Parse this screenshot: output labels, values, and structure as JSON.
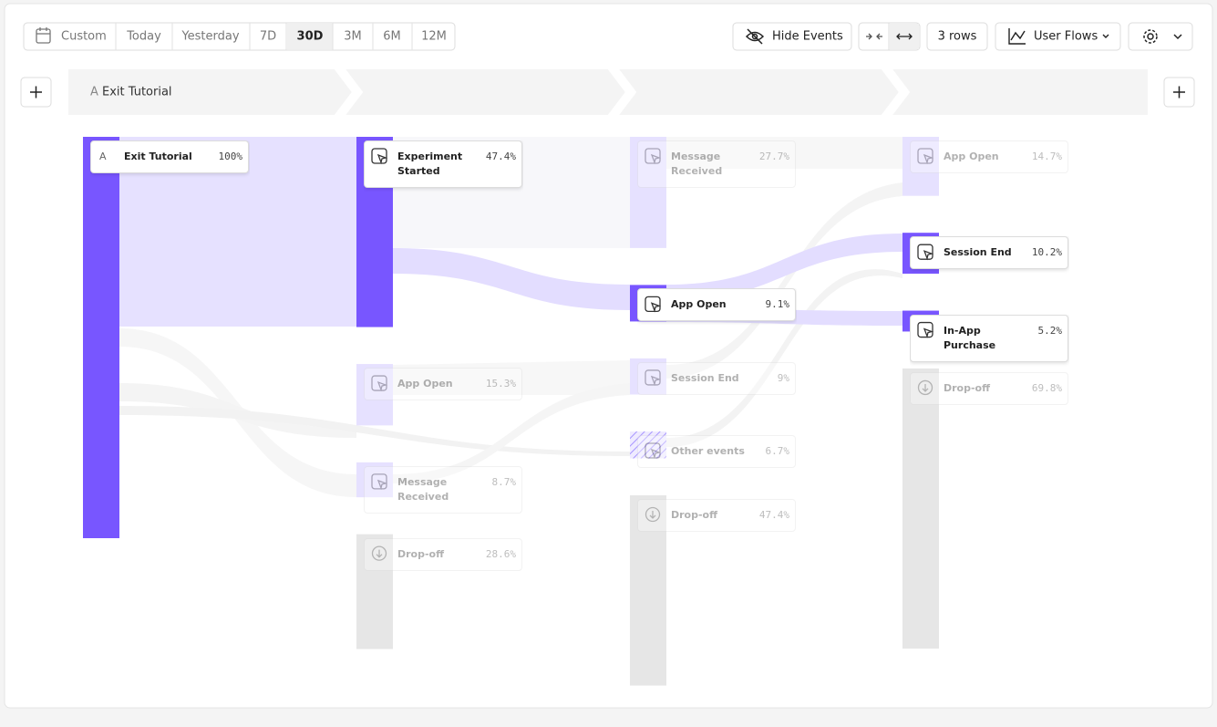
{
  "toolbar": {
    "date_ranges": [
      "Custom",
      "Today",
      "Yesterday",
      "7D",
      "30D",
      "3M",
      "6M",
      "12M"
    ],
    "active_range": 4,
    "hide_events": "Hide Events",
    "rows": "3 rows",
    "view": "User Flows"
  },
  "steps": [
    {
      "letter": "A",
      "label": "Exit Tutorial"
    }
  ],
  "columns": [
    [
      {
        "letter": "A",
        "label": "Exit Tutorial",
        "value": 100,
        "value_label": "100%",
        "highlighted": true,
        "kind": "event"
      }
    ],
    [
      {
        "label": "Experiment Started",
        "value": 47.4,
        "value_label": "47.4%",
        "highlighted": true,
        "kind": "event"
      },
      {
        "label": "App Open",
        "value": 15.3,
        "value_label": "15.3%",
        "highlighted": false,
        "kind": "event"
      },
      {
        "label": "Message Received",
        "value": 8.7,
        "value_label": "8.7%",
        "highlighted": false,
        "kind": "event"
      },
      {
        "label": "Drop-off",
        "value": 28.6,
        "value_label": "28.6%",
        "highlighted": false,
        "kind": "dropoff"
      }
    ],
    [
      {
        "label": "Message Received",
        "value": 27.7,
        "value_label": "27.7%",
        "highlighted": false,
        "kind": "event"
      },
      {
        "label": "App Open",
        "value": 9.1,
        "value_label": "9.1%",
        "highlighted": true,
        "kind": "event"
      },
      {
        "label": "Session End",
        "value": 9,
        "value_label": "9%",
        "highlighted": false,
        "kind": "event"
      },
      {
        "label": "Other events",
        "value": 6.7,
        "value_label": "6.7%",
        "highlighted": false,
        "kind": "other"
      },
      {
        "label": "Drop-off",
        "value": 47.4,
        "value_label": "47.4%",
        "highlighted": false,
        "kind": "dropoff"
      }
    ],
    [
      {
        "label": "App Open",
        "value": 14.7,
        "value_label": "14.7%",
        "highlighted": false,
        "kind": "event"
      },
      {
        "label": "Session End",
        "value": 10.2,
        "value_label": "10.2%",
        "highlighted": true,
        "kind": "event"
      },
      {
        "label": "In-App Purchase",
        "value": 5.2,
        "value_label": "5.2%",
        "highlighted": true,
        "kind": "event"
      },
      {
        "label": "Drop-off",
        "value": 69.8,
        "value_label": "69.8%",
        "highlighted": false,
        "kind": "dropoff"
      }
    ]
  ]
}
